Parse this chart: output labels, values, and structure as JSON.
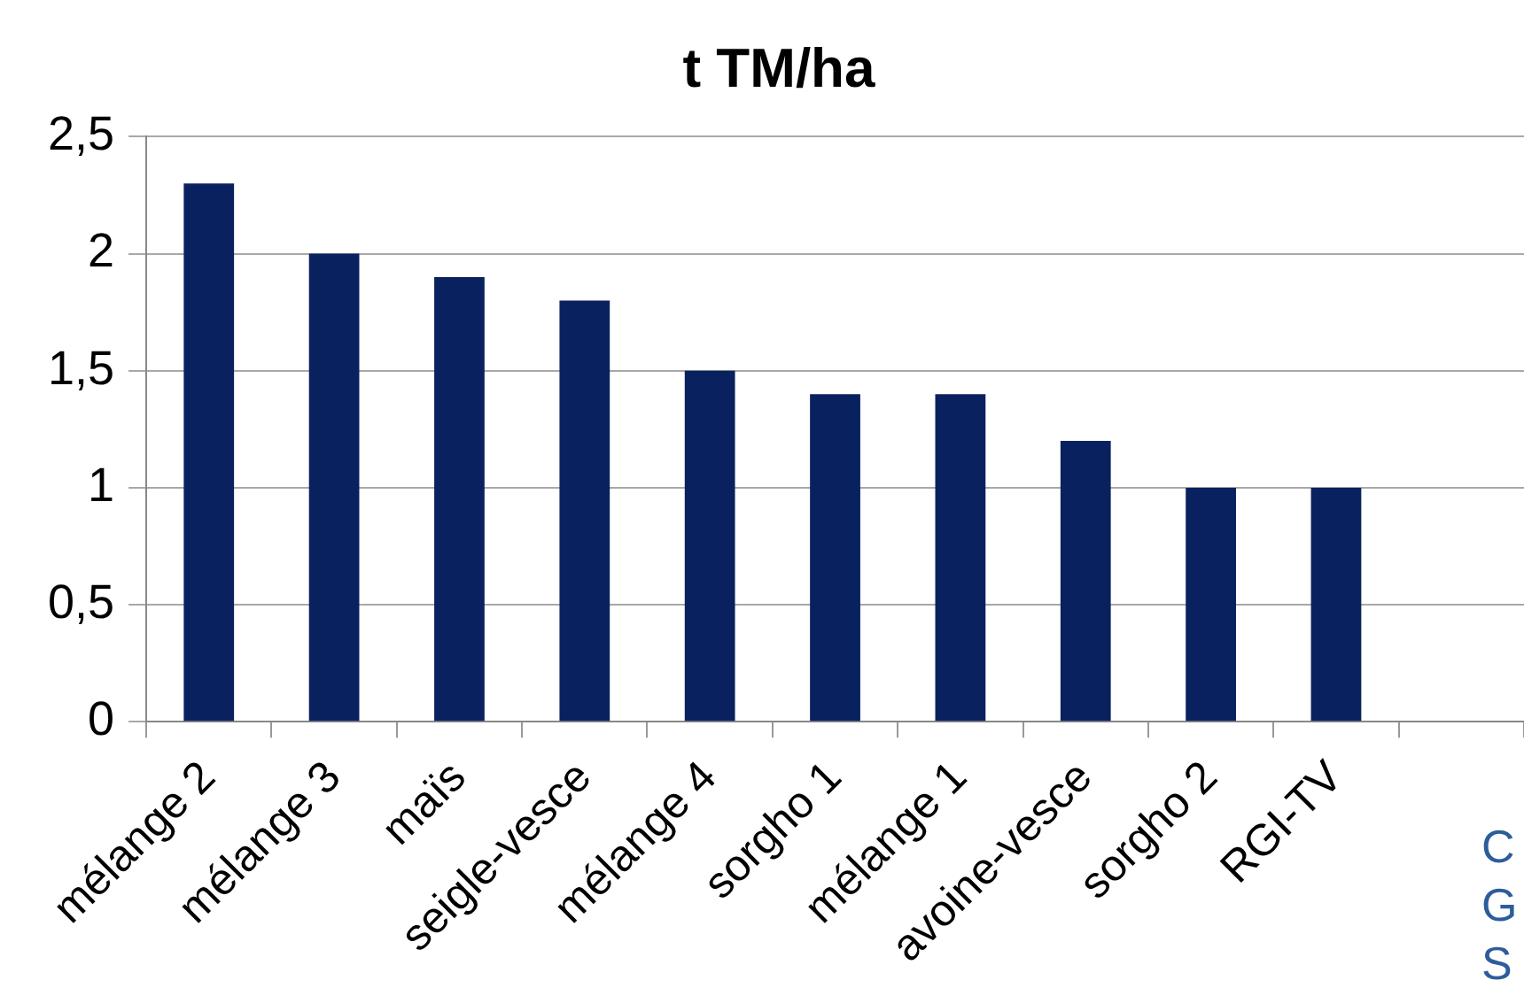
{
  "chart_data": {
    "type": "bar",
    "title": "t TM/ha",
    "categories": [
      "mélange 2",
      "mélange 3",
      "maïs",
      "seigle-vesce",
      "mélange 4",
      "sorgho 1",
      "mélange 1",
      "avoine-vesce",
      "sorgho 2",
      "RGI-TV",
      null
    ],
    "values": [
      2.3,
      2.0,
      1.9,
      1.8,
      1.5,
      1.4,
      1.4,
      1.2,
      1.0,
      1.0,
      null
    ],
    "color": "#0a215f",
    "ylim": [
      0,
      2.5
    ],
    "yticks": [
      0,
      {
        "value": 0.5,
        "label": "0,5"
      },
      1,
      {
        "value": 1.5,
        "label": "1,5"
      },
      2,
      {
        "value": 2.5,
        "label": "2,5"
      }
    ],
    "grid": "y",
    "annotations": [
      "C",
      "G",
      "S"
    ]
  }
}
